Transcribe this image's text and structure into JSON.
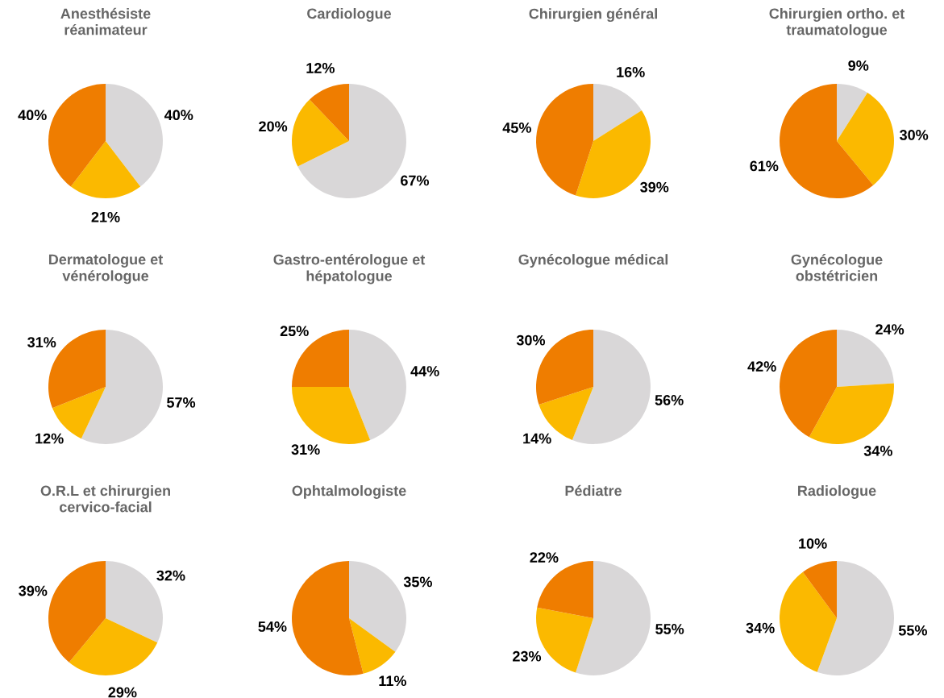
{
  "chart_data": [
    {
      "type": "pie",
      "title": "Anesthésiste\nréanimateur",
      "categories": [
        null,
        null,
        null
      ],
      "values": [
        40,
        21,
        40
      ],
      "value_labels": [
        "40%",
        "21%",
        "40%"
      ],
      "colors": [
        "#d9d7d8",
        "#fbb900",
        "#ef7d00"
      ]
    },
    {
      "type": "pie",
      "title": "Cardiologue",
      "categories": [
        null,
        null,
        null
      ],
      "values": [
        67,
        20,
        12
      ],
      "value_labels": [
        "67%",
        "20%",
        "12%"
      ],
      "colors": [
        "#d9d7d8",
        "#fbb900",
        "#ef7d00"
      ]
    },
    {
      "type": "pie",
      "title": "Chirurgien général",
      "categories": [
        null,
        null,
        null
      ],
      "values": [
        16,
        39,
        45
      ],
      "value_labels": [
        "16%",
        "39%",
        "45%"
      ],
      "colors": [
        "#d9d7d8",
        "#fbb900",
        "#ef7d00"
      ]
    },
    {
      "type": "pie",
      "title": "Chirurgien ortho. et\ntraumatologue",
      "categories": [
        null,
        null,
        null
      ],
      "values": [
        9,
        30,
        61
      ],
      "value_labels": [
        "9%",
        "30%",
        "61%"
      ],
      "colors": [
        "#d9d7d8",
        "#fbb900",
        "#ef7d00"
      ]
    },
    {
      "type": "pie",
      "title": "Dermatologue et\nvénérologue",
      "categories": [
        null,
        null,
        null
      ],
      "values": [
        57,
        12,
        31
      ],
      "value_labels": [
        "57%",
        "12%",
        "31%"
      ],
      "colors": [
        "#d9d7d8",
        "#fbb900",
        "#ef7d00"
      ]
    },
    {
      "type": "pie",
      "title": "Gastro-entérologue et\nhépatologue",
      "categories": [
        null,
        null,
        null
      ],
      "values": [
        44,
        31,
        25
      ],
      "value_labels": [
        "44%",
        "31%",
        "25%"
      ],
      "colors": [
        "#d9d7d8",
        "#fbb900",
        "#ef7d00"
      ]
    },
    {
      "type": "pie",
      "title": "Gynécologue médical",
      "categories": [
        null,
        null,
        null
      ],
      "values": [
        56,
        14,
        30
      ],
      "value_labels": [
        "56%",
        "14%",
        "30%"
      ],
      "colors": [
        "#d9d7d8",
        "#fbb900",
        "#ef7d00"
      ]
    },
    {
      "type": "pie",
      "title": "Gynécologue\nobstétricien",
      "categories": [
        null,
        null,
        null
      ],
      "values": [
        24,
        34,
        42
      ],
      "value_labels": [
        "24%",
        "34%",
        "42%"
      ],
      "colors": [
        "#d9d7d8",
        "#fbb900",
        "#ef7d00"
      ]
    },
    {
      "type": "pie",
      "title": "O.R.L et chirurgien\ncervico-facial",
      "categories": [
        null,
        null,
        null
      ],
      "values": [
        32,
        29,
        39
      ],
      "value_labels": [
        "32%",
        "29%",
        "39%"
      ],
      "colors": [
        "#d9d7d8",
        "#fbb900",
        "#ef7d00"
      ]
    },
    {
      "type": "pie",
      "title": "Ophtalmologiste",
      "categories": [
        null,
        null,
        null
      ],
      "values": [
        35,
        11,
        54
      ],
      "value_labels": [
        "35%",
        "11%",
        "54%"
      ],
      "colors": [
        "#d9d7d8",
        "#fbb900",
        "#ef7d00"
      ]
    },
    {
      "type": "pie",
      "title": "Pédiatre",
      "categories": [
        null,
        null,
        null
      ],
      "values": [
        55,
        23,
        22
      ],
      "value_labels": [
        "55%",
        "23%",
        "22%"
      ],
      "colors": [
        "#d9d7d8",
        "#fbb900",
        "#ef7d00"
      ]
    },
    {
      "type": "pie",
      "title": "Radiologue",
      "categories": [
        null,
        null,
        null
      ],
      "values": [
        55,
        34,
        10
      ],
      "value_labels": [
        "55%",
        "34%",
        "10%"
      ],
      "colors": [
        "#d9d7d8",
        "#fbb900",
        "#ef7d00"
      ]
    }
  ]
}
